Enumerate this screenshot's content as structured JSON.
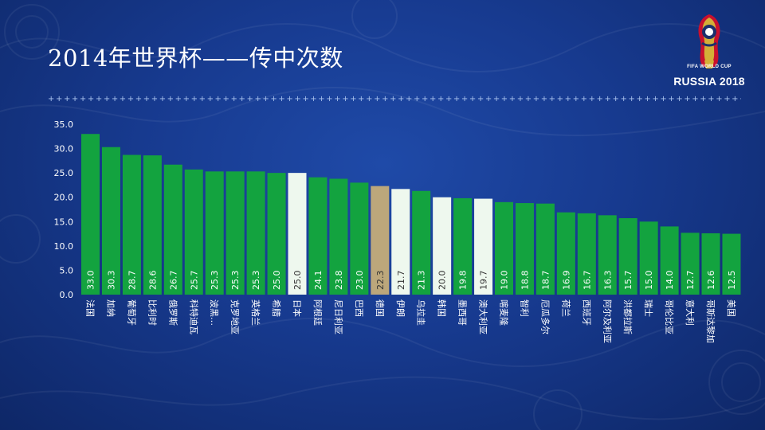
{
  "title": "2014年世界杯——传中次数",
  "logo": {
    "line1": "FIFA WORLD CUP",
    "line2": "RUSSIA 2018",
    "icon": "world-cup-trophy-emblem"
  },
  "divider": "++++++++++++++++++++++++++++++++++++++++++++++++++++++++++++++++++++++++++++++++++++++++++++++++++++++++",
  "colors": {
    "bar_default": "#13a33f",
    "bar_white": "#eef8ee",
    "bar_highlight": "#bca77b",
    "axis_text": "#ffffff",
    "bar_label_on_green": "#ffffff",
    "bar_label_on_light": "#333333"
  },
  "chart_data": {
    "type": "bar",
    "title": "",
    "xlabel": "",
    "ylabel": "",
    "ylim": [
      0,
      35
    ],
    "yticks": [
      "0.0",
      "5.0",
      "10.0",
      "15.0",
      "20.0",
      "25.0",
      "30.0",
      "35.0"
    ],
    "grid": false,
    "legend": "none",
    "categories": [
      "法国",
      "加纳",
      "葡萄牙",
      "比利时",
      "俄罗斯",
      "科特迪瓦",
      "波黑…",
      "克罗地亚",
      "英格兰",
      "希腊",
      "日本",
      "阿根廷",
      "尼日利亚",
      "巴西",
      "德国",
      "伊朗",
      "乌拉圭",
      "韩国",
      "墨西哥",
      "澳大利亚",
      "喀麦隆",
      "智利",
      "厄瓜多尔",
      "荷兰",
      "西班牙",
      "阿尔及利亚",
      "洪都拉斯",
      "瑞士",
      "哥伦比亚",
      "意大利",
      "哥斯达黎加",
      "美国"
    ],
    "values": [
      33.0,
      30.3,
      28.7,
      28.6,
      26.7,
      25.7,
      25.3,
      25.3,
      25.3,
      25.0,
      25.0,
      24.1,
      23.8,
      23.0,
      22.3,
      21.7,
      21.3,
      20.0,
      19.8,
      19.7,
      19.0,
      18.8,
      18.7,
      16.9,
      16.7,
      16.3,
      15.7,
      15.0,
      14.0,
      12.7,
      12.6,
      12.5
    ],
    "data_labels": [
      "33.0",
      "30.3",
      "28.7",
      "28.6",
      "26.7",
      "25.7",
      "25.3",
      "25.3",
      "25.3",
      "25.0",
      "25.0",
      "24.1",
      "23.8",
      "23.0",
      "22.3",
      "21.7",
      "21.3",
      "20.0",
      "19.8",
      "19.7",
      "19.0",
      "18.8",
      "18.7",
      "16.9",
      "16.7",
      "16.3",
      "15.7",
      "15.0",
      "14.0",
      "12.7",
      "12.6",
      "12.5"
    ],
    "bar_styles": [
      "default",
      "default",
      "default",
      "default",
      "default",
      "default",
      "default",
      "default",
      "default",
      "default",
      "white",
      "default",
      "default",
      "default",
      "highlight",
      "white",
      "default",
      "white",
      "default",
      "white",
      "default",
      "default",
      "default",
      "default",
      "default",
      "default",
      "default",
      "default",
      "default",
      "default",
      "default",
      "default"
    ]
  }
}
